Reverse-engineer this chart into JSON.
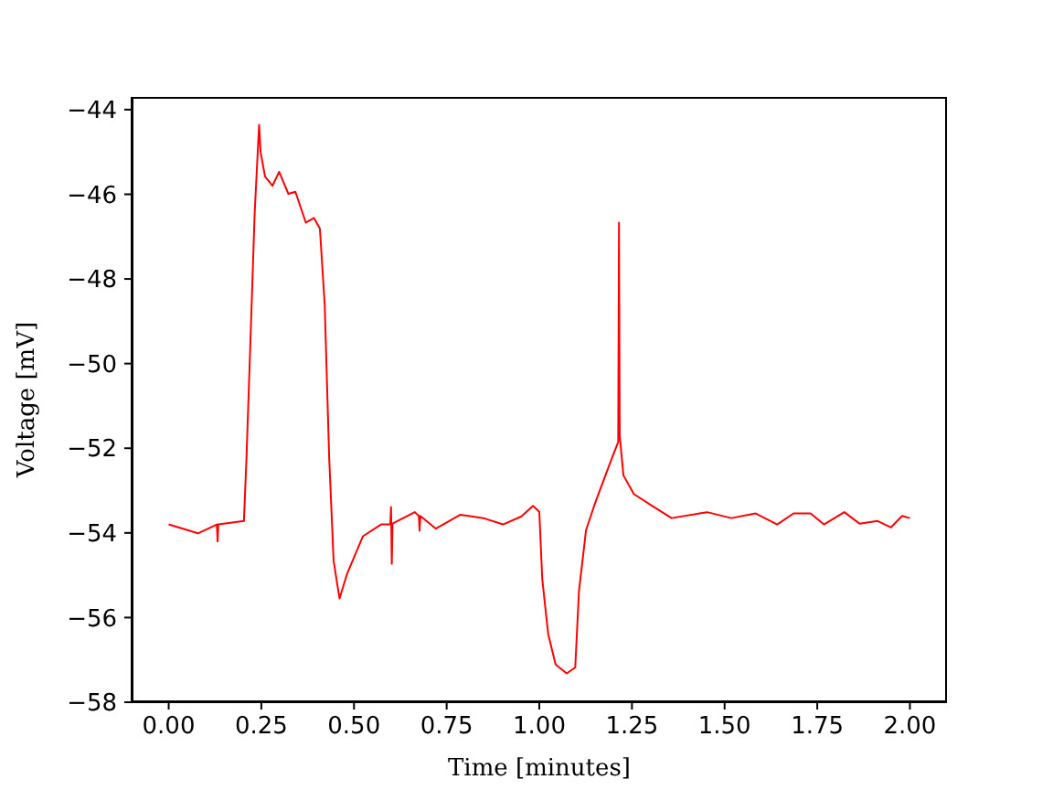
{
  "chart_data": {
    "type": "line",
    "xlabel": "Time [minutes]",
    "ylabel": "Voltage [mV]",
    "xlim": [
      -0.1,
      2.1
    ],
    "xticks": [
      {
        "value": 0,
        "label": "0.00"
      },
      {
        "value": 0.25,
        "label": "0.25"
      },
      {
        "value": 0.5,
        "label": "0.50"
      },
      {
        "value": 0.75,
        "label": "0.75"
      },
      {
        "value": 1,
        "label": "1.00"
      },
      {
        "value": 1.25,
        "label": "1.25"
      },
      {
        "value": 1.5,
        "label": "1.50"
      },
      {
        "value": 1.75,
        "label": "1.75"
      },
      {
        "value": 2,
        "label": "2.00"
      }
    ],
    "ylim": [
      -58,
      -43.7
    ],
    "yticks": [
      {
        "value": -58,
        "label": "−58"
      },
      {
        "value": -56,
        "label": "−56"
      },
      {
        "value": -54,
        "label": "−54"
      },
      {
        "value": -52,
        "label": "−52"
      },
      {
        "value": -50,
        "label": "−50"
      },
      {
        "value": -48,
        "label": "−48"
      },
      {
        "value": -46,
        "label": "−46"
      },
      {
        "value": -44,
        "label": "−44"
      }
    ],
    "marker": "none",
    "line_style": "solid",
    "series": [
      {
        "color": "#ff0000",
        "x": [
          0,
          0.079,
          0.13,
          0.132,
          0.134,
          0.203,
          0.21,
          0.22,
          0.232,
          0.244,
          0.248,
          0.26,
          0.28,
          0.298,
          0.323,
          0.342,
          0.37,
          0.392,
          0.408,
          0.421,
          0.433,
          0.445,
          0.461,
          0.482,
          0.524,
          0.573,
          0.598,
          0.6,
          0.602,
          0.604,
          0.664,
          0.675,
          0.677,
          0.679,
          0.721,
          0.787,
          0.853,
          0.902,
          0.952,
          0.983,
          1.0,
          1.008,
          1.024,
          1.044,
          1.074,
          1.097,
          1.107,
          1.126,
          1.148,
          1.172,
          1.197,
          1.213,
          1.215,
          1.217,
          1.227,
          1.255,
          1.304,
          1.357,
          1.453,
          1.518,
          1.584,
          1.642,
          1.686,
          1.732,
          1.768,
          1.823,
          1.864,
          1.913,
          1.949,
          1.979,
          2.0
        ],
        "values": [
          -53.8,
          -54.01,
          -53.8,
          -54.2,
          -53.8,
          -53.72,
          -52.21,
          -49.62,
          -46.45,
          -44.36,
          -45.01,
          -45.58,
          -45.8,
          -45.47,
          -45.99,
          -45.94,
          -46.67,
          -46.56,
          -46.81,
          -48.61,
          -52.21,
          -54.66,
          -55.55,
          -54.95,
          -54.08,
          -53.8,
          -53.8,
          -53.39,
          -54.73,
          -53.78,
          -53.51,
          -53.6,
          -53.95,
          -53.6,
          -53.9,
          -53.57,
          -53.66,
          -53.8,
          -53.61,
          -53.36,
          -53.5,
          -55.09,
          -56.39,
          -57.11,
          -57.32,
          -57.18,
          -55.38,
          -53.94,
          -53.36,
          -52.79,
          -52.21,
          -51.85,
          -46.67,
          -51.7,
          -52.64,
          -53.08,
          -53.36,
          -53.65,
          -53.51,
          -53.65,
          -53.54,
          -53.8,
          -53.54,
          -53.54,
          -53.8,
          -53.51,
          -53.78,
          -53.72,
          -53.87,
          -53.6,
          -53.65
        ]
      }
    ]
  }
}
